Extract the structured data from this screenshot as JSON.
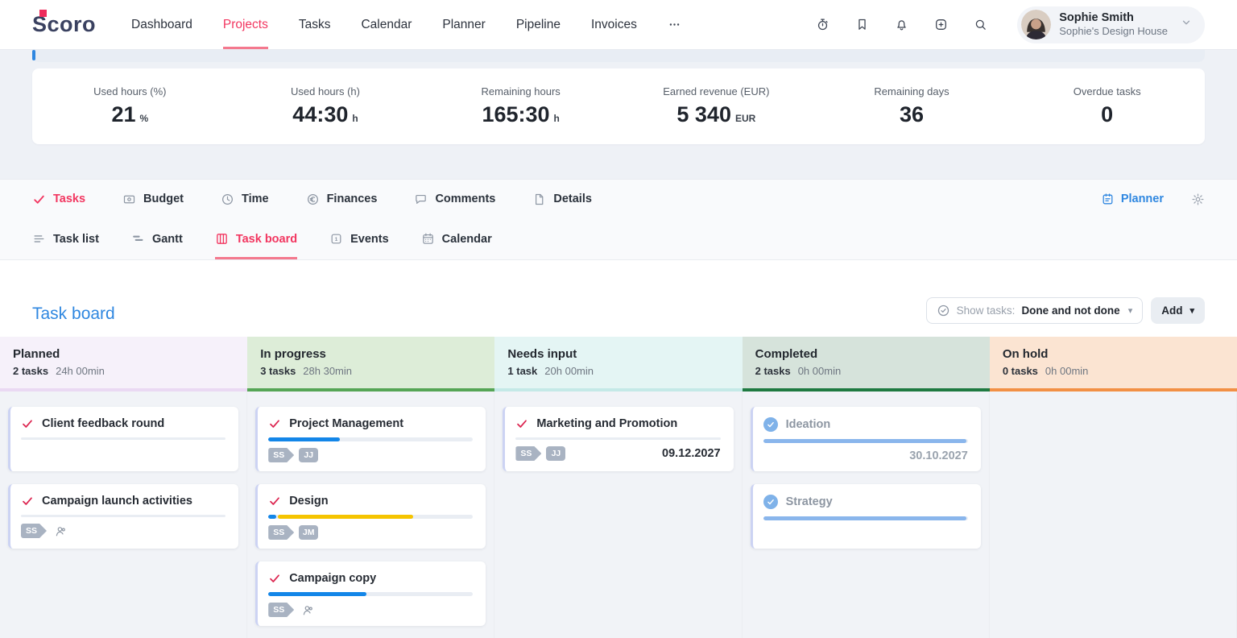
{
  "nav": {
    "logo": "Scoro",
    "items": [
      {
        "label": "Dashboard",
        "active": false
      },
      {
        "label": "Projects",
        "active": true
      },
      {
        "label": "Tasks",
        "active": false
      },
      {
        "label": "Calendar",
        "active": false
      },
      {
        "label": "Planner",
        "active": false
      },
      {
        "label": "Pipeline",
        "active": false
      },
      {
        "label": "Invoices",
        "active": false
      }
    ],
    "more_icon": "ellipsis"
  },
  "topbar": {
    "icons": [
      "timer",
      "bookmark",
      "bell",
      "plus-square",
      "search"
    ],
    "user": {
      "name": "Sophie Smith",
      "company": "Sophie's Design House"
    }
  },
  "stats": [
    {
      "label": "Used hours (%)",
      "value": "21",
      "unit": "%"
    },
    {
      "label": "Used hours (h)",
      "value": "44:30",
      "unit": "h"
    },
    {
      "label": "Remaining hours",
      "value": "165:30",
      "unit": "h"
    },
    {
      "label": "Earned revenue (EUR)",
      "value": "5 340",
      "unit": "EUR"
    },
    {
      "label": "Remaining days",
      "value": "36",
      "unit": ""
    },
    {
      "label": "Overdue tasks",
      "value": "0",
      "unit": ""
    }
  ],
  "tabs": {
    "items": [
      {
        "label": "Tasks",
        "icon": "check",
        "active": true
      },
      {
        "label": "Budget",
        "icon": "banknote",
        "active": false
      },
      {
        "label": "Time",
        "icon": "clock",
        "active": false
      },
      {
        "label": "Finances",
        "icon": "coins",
        "active": false
      },
      {
        "label": "Comments",
        "icon": "comment",
        "active": false
      },
      {
        "label": "Details",
        "icon": "file",
        "active": false
      }
    ],
    "planner_label": "Planner",
    "settings_icon": "gear"
  },
  "subtabs": [
    {
      "label": "Task list",
      "icon": "list",
      "active": false
    },
    {
      "label": "Gantt",
      "icon": "gantt",
      "active": false
    },
    {
      "label": "Task board",
      "icon": "board",
      "active": true
    },
    {
      "label": "Events",
      "icon": "event",
      "active": false
    },
    {
      "label": "Calendar",
      "icon": "calendar",
      "active": false
    }
  ],
  "board": {
    "title": "Task board",
    "filter_label": "Show tasks:",
    "filter_value": "Done and not done",
    "add_label": "Add"
  },
  "colors": {
    "accent_pink": "#f23660",
    "accent_blue": "#2f87e0",
    "progress": {
      "blue": "#1386e8",
      "yellow": "#f5c400",
      "lightblue": "#8ab6ec"
    }
  },
  "columns": [
    {
      "name": "Planned",
      "count": "2 tasks",
      "hours": "24h 00min",
      "bg": "#f6f1fa",
      "accent": "#ead9f3",
      "cards": [
        {
          "title": "Client feedback round",
          "check": "todo",
          "track": true,
          "segments": [],
          "assignees": [],
          "person_icon": false
        },
        {
          "title": "Campaign launch activities",
          "check": "todo",
          "track": true,
          "segments": [],
          "assignees": [
            {
              "shape": "tag",
              "label": "SS"
            }
          ],
          "person_icon": true
        }
      ]
    },
    {
      "name": "In progress",
      "count": "3 tasks",
      "hours": "28h 30min",
      "bg": "#ddedd8",
      "accent": "#55a555",
      "cards": [
        {
          "title": "Project Management",
          "check": "todo",
          "track": true,
          "thick": true,
          "segments": [
            {
              "color": "blue",
              "pct": 35
            }
          ],
          "assignees": [
            {
              "shape": "tag",
              "label": "SS"
            },
            {
              "shape": "square",
              "label": "JJ"
            }
          ],
          "person_icon": false
        },
        {
          "title": "Design",
          "check": "todo",
          "track": true,
          "thick": true,
          "segments": [
            {
              "color": "blue",
              "pct": 4
            },
            {
              "color": "yellow",
              "pct": 66
            }
          ],
          "assignees": [
            {
              "shape": "tag",
              "label": "SS"
            },
            {
              "shape": "square",
              "label": "JM"
            }
          ],
          "person_icon": false
        },
        {
          "title": "Campaign copy",
          "check": "todo",
          "track": true,
          "thick": true,
          "segments": [
            {
              "color": "blue",
              "pct": 48
            }
          ],
          "assignees": [
            {
              "shape": "tag",
              "label": "SS"
            }
          ],
          "person_icon": true
        }
      ]
    },
    {
      "name": "Needs input",
      "count": "1 task",
      "hours": "20h 00min",
      "bg": "#e4f5f4",
      "accent": "#c4e9e7",
      "cards": [
        {
          "title": "Marketing and Promotion",
          "check": "todo",
          "track": true,
          "segments": [],
          "assignees": [
            {
              "shape": "tag",
              "label": "SS"
            },
            {
              "shape": "square",
              "label": "JJ"
            }
          ],
          "person_icon": false,
          "date": "09.12.2027",
          "date_style": "strong"
        }
      ]
    },
    {
      "name": "Completed",
      "count": "2 tasks",
      "hours": "0h 00min",
      "bg": "#d6e3db",
      "accent": "#1f7a41",
      "cards": [
        {
          "title": "Ideation",
          "check": "done",
          "muted": true,
          "track": true,
          "thick": true,
          "segments": [
            {
              "color": "lightblue",
              "pct": 100
            }
          ],
          "assignees": [],
          "person_icon": false,
          "date": "30.10.2027",
          "date_style": "muted"
        },
        {
          "title": "Strategy",
          "check": "done",
          "muted": true,
          "track": true,
          "thick": true,
          "segments": [
            {
              "color": "lightblue",
              "pct": 100
            }
          ],
          "assignees": [],
          "person_icon": false
        }
      ]
    },
    {
      "name": "On hold",
      "count": "0 tasks",
      "hours": "0h 00min",
      "bg": "#fbe4d2",
      "accent": "#f29045",
      "cards": []
    }
  ]
}
